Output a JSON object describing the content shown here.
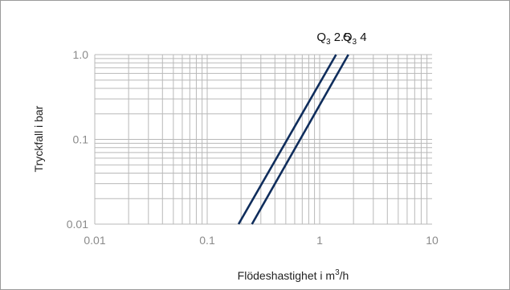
{
  "chart_data": {
    "type": "line",
    "title": "",
    "xlabel": "Flödeshastighet i m³/h",
    "xlabel_main": "Flödeshastighet i m",
    "xlabel_sup": "3",
    "xlabel_tail": "/h",
    "ylabel": "Tryckfall i bar",
    "x_scale": "log",
    "y_scale": "log",
    "xlim": [
      0.01,
      10
    ],
    "ylim": [
      0.01,
      1.0
    ],
    "grid": true,
    "x_ticks": [
      {
        "value": 0.01,
        "label": "0.01"
      },
      {
        "value": 0.1,
        "label": "0.1"
      },
      {
        "value": 1,
        "label": "1"
      },
      {
        "value": 10,
        "label": "10"
      }
    ],
    "y_ticks": [
      {
        "value": 0.01,
        "label": "0.01"
      },
      {
        "value": 0.1,
        "label": "0.1"
      },
      {
        "value": 1.0,
        "label": "1.0"
      }
    ],
    "series": [
      {
        "name": "Q3 2.5",
        "name_main": "Q",
        "name_sub": "3",
        "name_tail": " 2.5",
        "points": [
          {
            "x": 0.19,
            "y": 0.01
          },
          {
            "x": 1.4,
            "y": 1.0
          }
        ]
      },
      {
        "name": "Q3 4",
        "name_main": "Q",
        "name_sub": "3",
        "name_tail": " 4",
        "points": [
          {
            "x": 0.25,
            "y": 0.01
          },
          {
            "x": 1.8,
            "y": 1.0
          }
        ]
      }
    ],
    "colors": {
      "series": "#0f2d5c",
      "grid": "#b9b9b9",
      "tick_text": "#8a8a8a",
      "frame": "#9a9a9a"
    }
  }
}
